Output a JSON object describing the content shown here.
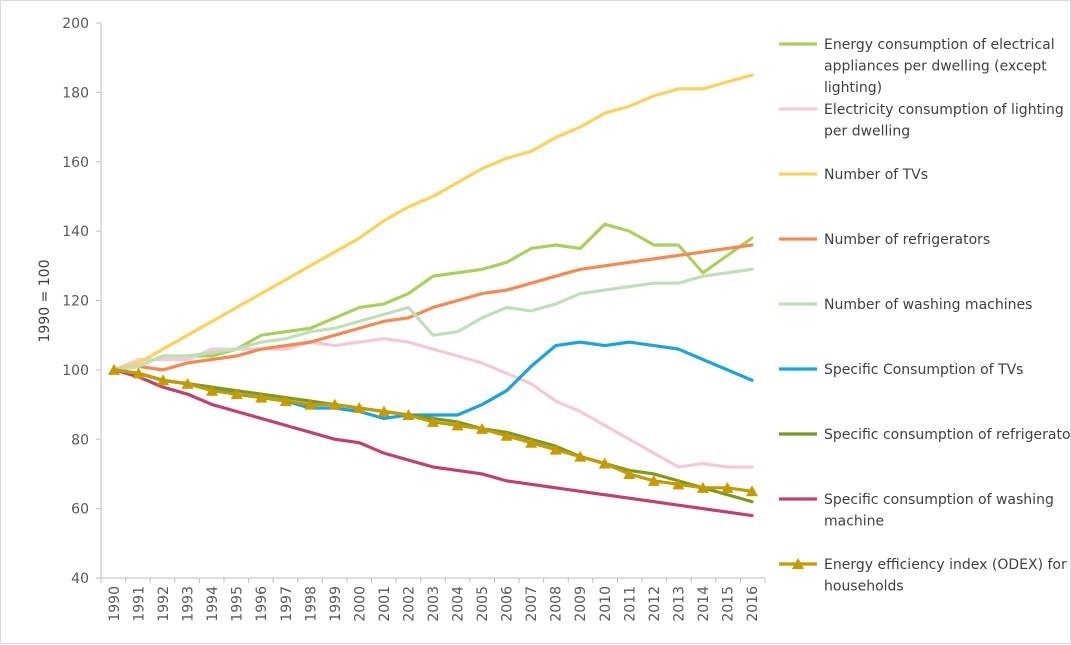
{
  "chart_data": {
    "type": "line",
    "title": "",
    "xlabel": "",
    "ylabel": "1990 = 100",
    "ylim": [
      40,
      200
    ],
    "yticks": [
      40,
      60,
      80,
      100,
      120,
      140,
      160,
      180,
      200
    ],
    "grid": false,
    "legend_position": "right",
    "categories": [
      "1990",
      "1991",
      "1992",
      "1993",
      "1994",
      "1995",
      "1996",
      "1997",
      "1998",
      "1999",
      "2000",
      "2001",
      "2002",
      "2003",
      "2004",
      "2005",
      "2006",
      "2007",
      "2008",
      "2009",
      "2010",
      "2011",
      "2012",
      "2013",
      "2014",
      "2015",
      "2016"
    ],
    "series": [
      {
        "name": "Energy consumption of electrical appliances per dwelling (except lighting)",
        "legend_lines": [
          "Energy consumption of electrical",
          "appliances per dwelling (except",
          "lighting)"
        ],
        "color": "#a9d05a",
        "marker": "none",
        "values": [
          100,
          101,
          104,
          104,
          104,
          106,
          110,
          111,
          112,
          115,
          118,
          119,
          122,
          127,
          128,
          129,
          131,
          135,
          136,
          135,
          142,
          140,
          136,
          136,
          128,
          133,
          138
        ]
      },
      {
        "name": "Electricity consumption of lighting per dwelling",
        "legend_lines": [
          "Electricity consumption of lighting",
          "per dwelling"
        ],
        "color": "#f2c9d4",
        "marker": "none",
        "values": [
          100,
          103,
          103,
          103,
          106,
          106,
          106,
          106,
          108,
          107,
          108,
          109,
          108,
          106,
          104,
          102,
          99,
          96,
          91,
          88,
          84,
          80,
          76,
          72,
          73,
          72,
          72
        ]
      },
      {
        "name": "Number of TVs",
        "legend_lines": [
          "Number of TVs"
        ],
        "color": "#fbd25e",
        "marker": "none",
        "values": [
          100,
          102,
          106,
          110,
          114,
          118,
          122,
          126,
          130,
          134,
          138,
          143,
          147,
          150,
          154,
          158,
          161,
          163,
          167,
          170,
          174,
          176,
          179,
          181,
          181,
          183,
          185
        ]
      },
      {
        "name": "Number of refrigerators",
        "legend_lines": [
          "Number of refrigerators"
        ],
        "color": "#f48a50",
        "marker": "none",
        "values": [
          100,
          101,
          100,
          102,
          103,
          104,
          106,
          107,
          108,
          110,
          112,
          114,
          115,
          118,
          120,
          122,
          123,
          125,
          127,
          129,
          130,
          131,
          132,
          133,
          134,
          135,
          136
        ]
      },
      {
        "name": "Number of washing machines",
        "legend_lines": [
          "Number of washing machines"
        ],
        "color": "#bfdfb9",
        "marker": "none",
        "values": [
          100,
          101,
          104,
          104,
          105,
          106,
          108,
          109,
          111,
          112,
          114,
          116,
          118,
          110,
          111,
          115,
          118,
          117,
          119,
          122,
          123,
          124,
          125,
          125,
          127,
          128,
          129
        ]
      },
      {
        "name": "Specific Consumption of TVs",
        "legend_lines": [
          "Specific Consumption of TVs"
        ],
        "color": "#1aa3de",
        "marker": "none",
        "values": [
          100,
          99,
          97,
          96,
          95,
          93,
          92,
          91,
          89,
          89,
          88,
          86,
          87,
          87,
          87,
          90,
          94,
          101,
          107,
          108,
          107,
          108,
          107,
          106,
          103,
          100,
          97
        ]
      },
      {
        "name": "Specific consumption of refrigerators",
        "legend_lines": [
          "Specific consumption of refrigerators"
        ],
        "color": "#7a9a1e",
        "marker": "none",
        "values": [
          100,
          99,
          97,
          96,
          95,
          94,
          93,
          92,
          91,
          90,
          89,
          88,
          87,
          86,
          85,
          83,
          82,
          80,
          78,
          75,
          73,
          71,
          70,
          68,
          66,
          64,
          62
        ]
      },
      {
        "name": "Specific consumption of washing machine",
        "legend_lines": [
          "Specific consumption of washing",
          "machine"
        ],
        "color": "#c0426b",
        "marker": "none",
        "values": [
          100,
          98,
          95,
          93,
          90,
          88,
          86,
          84,
          82,
          80,
          79,
          76,
          74,
          72,
          71,
          70,
          68,
          67,
          66,
          65,
          64,
          63,
          62,
          61,
          60,
          59,
          58
        ]
      },
      {
        "name": "Energy efficiency index (ODEX) for households",
        "legend_lines": [
          "Energy efficiency index (ODEX) for",
          "households"
        ],
        "color": "#c49a00",
        "marker": "triangle",
        "values": [
          100,
          99,
          97,
          96,
          94,
          93,
          92,
          91,
          90,
          90,
          89,
          88,
          87,
          85,
          84,
          83,
          81,
          79,
          77,
          75,
          73,
          70,
          68,
          67,
          66,
          66,
          65
        ]
      }
    ]
  }
}
